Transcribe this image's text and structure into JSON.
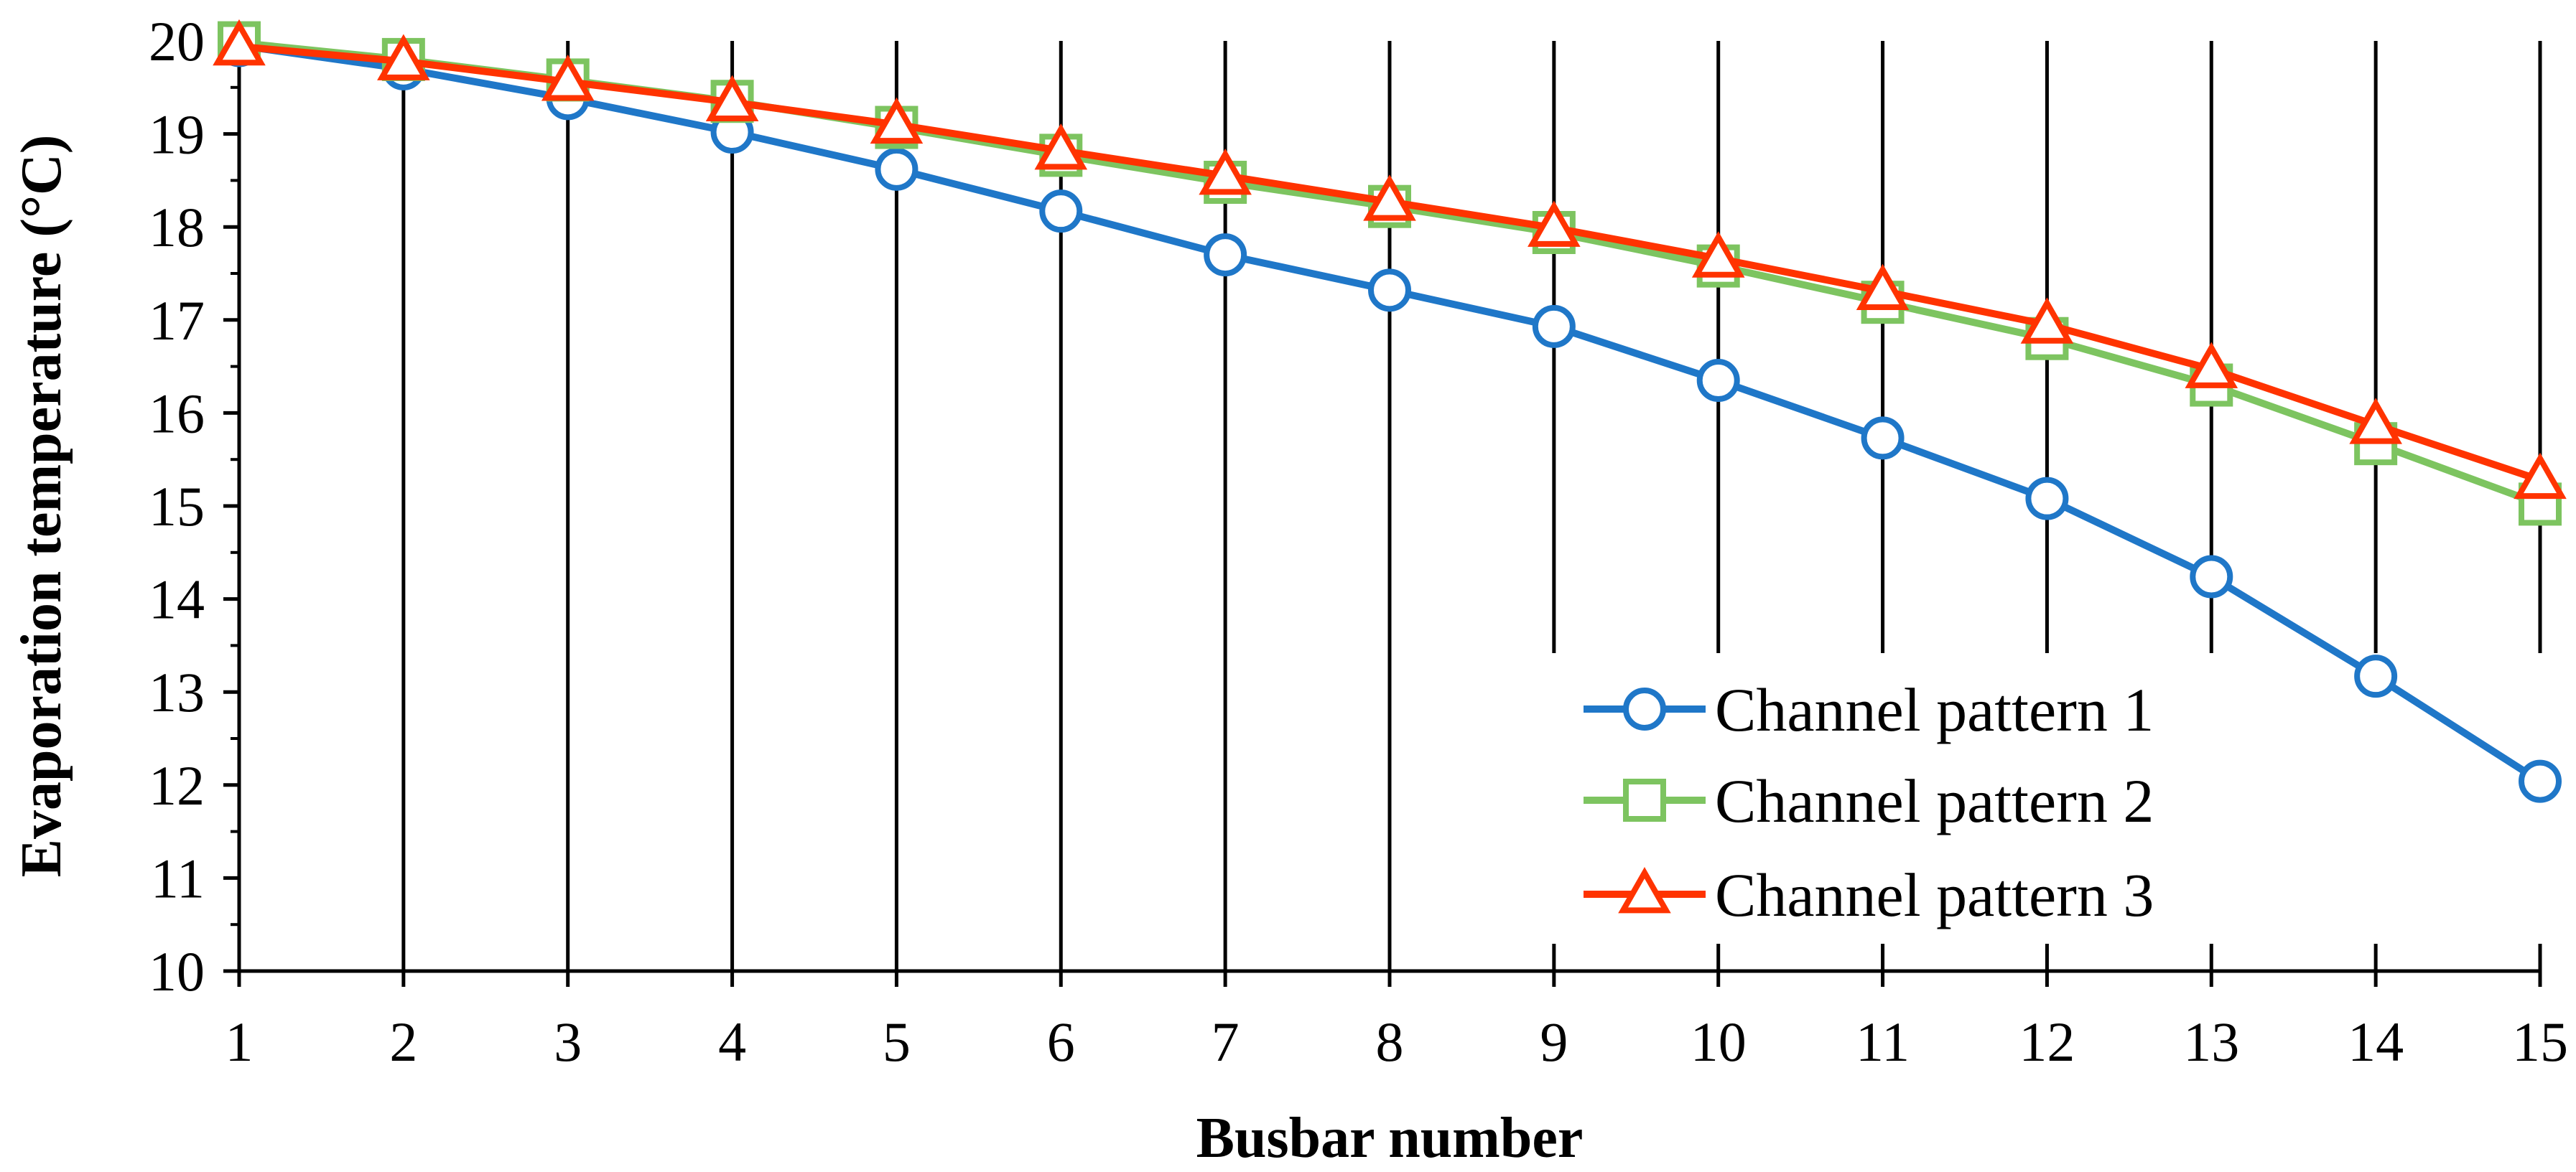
{
  "chart_data": {
    "type": "line",
    "title": "",
    "xlabel": "Busbar number",
    "ylabel": "Evaporation temperature (°C)",
    "x": [
      1,
      2,
      3,
      4,
      5,
      6,
      7,
      8,
      9,
      10,
      11,
      12,
      13,
      14,
      15
    ],
    "x_tick_labels": [
      "1",
      "2",
      "3",
      "4",
      "5",
      "6",
      "7",
      "8",
      "9",
      "10",
      "11",
      "12",
      "13",
      "14",
      "15"
    ],
    "y_tick_labels": [
      "10",
      "11",
      "12",
      "13",
      "14",
      "15",
      "16",
      "17",
      "18",
      "19",
      "20"
    ],
    "xlim": [
      1,
      15
    ],
    "ylim": [
      10,
      20
    ],
    "grid": "vertical",
    "legend_position": "bottom-right",
    "series": [
      {
        "name": "Channel pattern 1",
        "color": "#1f77c8",
        "marker": "circle",
        "values": [
          19.95,
          19.7,
          19.38,
          19.02,
          18.62,
          18.17,
          17.7,
          17.32,
          16.93,
          16.35,
          15.73,
          15.08,
          14.24,
          13.17,
          12.04
        ]
      },
      {
        "name": "Channel pattern 2",
        "color": "#7dc460",
        "marker": "square",
        "values": [
          19.98,
          19.8,
          19.58,
          19.35,
          19.07,
          18.77,
          18.48,
          18.22,
          17.94,
          17.58,
          17.19,
          16.8,
          16.3,
          15.67,
          15.02
        ]
      },
      {
        "name": "Channel pattern 3",
        "color": "#ff3300",
        "marker": "triangle",
        "values": [
          19.94,
          19.78,
          19.56,
          19.34,
          19.1,
          18.82,
          18.55,
          18.27,
          17.99,
          17.66,
          17.31,
          16.95,
          16.47,
          15.87,
          15.28
        ]
      }
    ]
  }
}
